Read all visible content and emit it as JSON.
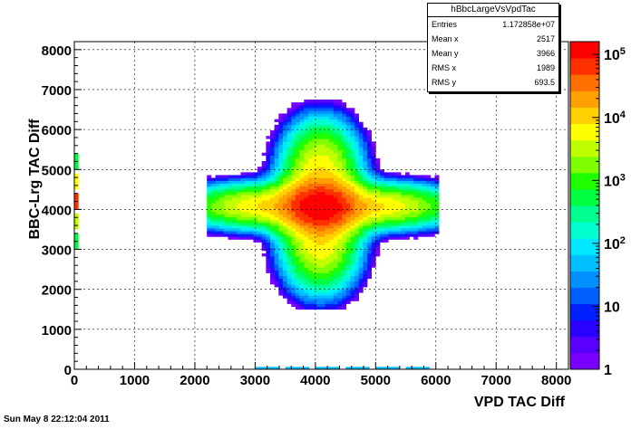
{
  "chart_data": {
    "type": "heatmap",
    "title": "",
    "xlabel": "VPD TAC Diff",
    "ylabel": "BBC-Lrg TAC Diff",
    "xlim": [
      0,
      8200
    ],
    "ylim": [
      0,
      8200
    ],
    "x_ticks": [
      0,
      1000,
      2000,
      3000,
      4000,
      5000,
      6000,
      7000,
      8000
    ],
    "y_ticks": [
      0,
      1000,
      2000,
      3000,
      4000,
      5000,
      6000,
      7000,
      8000
    ],
    "z_scale": "log",
    "z_ticks": [
      "1",
      "10",
      "10^2",
      "10^3",
      "10^4",
      "10^5"
    ],
    "z_tick_values": [
      1,
      10,
      100,
      1000,
      10000,
      100000
    ],
    "peak": {
      "x": 4050,
      "y": 4050
    },
    "grid": true,
    "palette": [
      "#7a00ff",
      "#5a00ff",
      "#2a00ff",
      "#0020ff",
      "#0060ff",
      "#0090ff",
      "#00c0ff",
      "#00e8ff",
      "#00ffd0",
      "#00ff90",
      "#00ff40",
      "#20ff00",
      "#80ff00",
      "#c0ff00",
      "#ffff00",
      "#ffd000",
      "#ffa000",
      "#ff7000",
      "#ff3000",
      "#ff0000"
    ]
  },
  "stats_box": {
    "title": "hBbcLargeVsVpdTac",
    "rows": [
      {
        "label": "Entries",
        "value": "1.172858e+07"
      },
      {
        "label": "Mean x",
        "value": "2517"
      },
      {
        "label": "Mean y",
        "value": "3966"
      },
      {
        "label": "RMS x",
        "value": "1989"
      },
      {
        "label": "RMS y",
        "value": "693.5"
      }
    ]
  },
  "footer": "Sun May  8 22:12:04 2011"
}
